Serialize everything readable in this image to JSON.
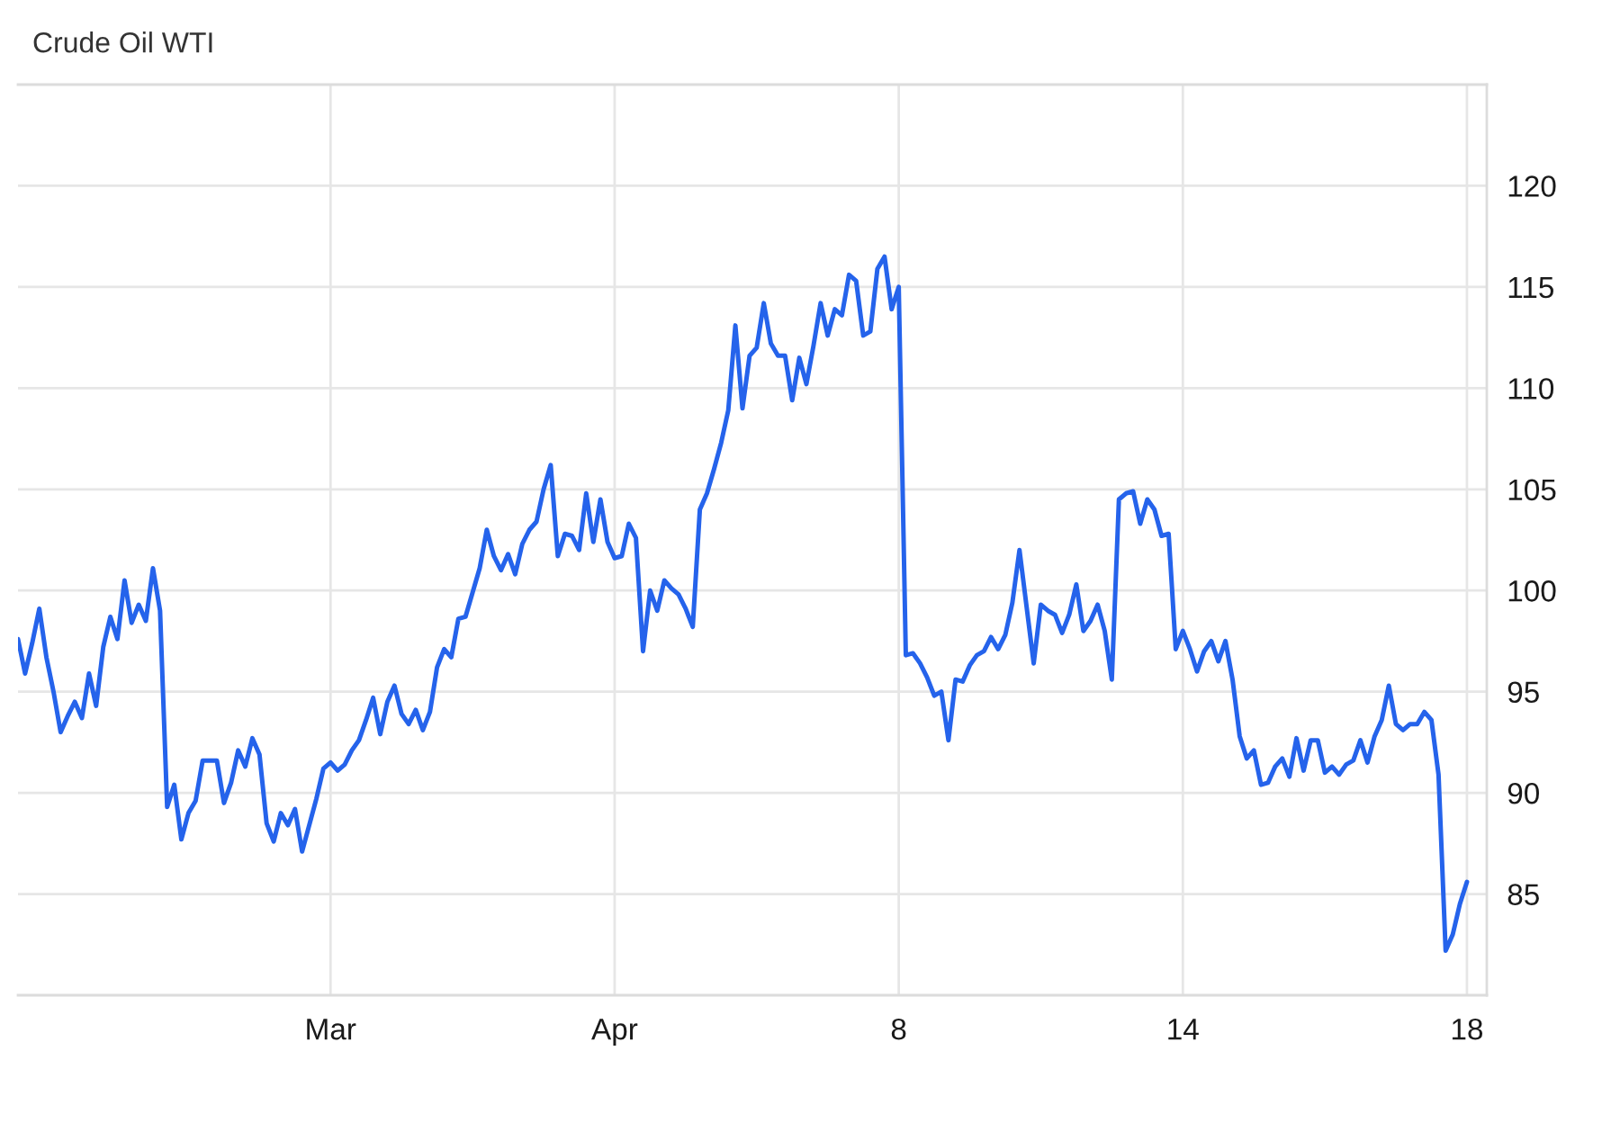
{
  "chart_data": {
    "type": "line",
    "title": "Crude Oil WTI",
    "categories": [
      null,
      null,
      null,
      null,
      null,
      null,
      null,
      null,
      null,
      null,
      null,
      null,
      null,
      null,
      null,
      null,
      null,
      null,
      null,
      null,
      null,
      null,
      null,
      null,
      null,
      null,
      null,
      null,
      null,
      null,
      null,
      null,
      null,
      null,
      null,
      null,
      null,
      null,
      null,
      null,
      null,
      null,
      null,
      null,
      "Mar",
      null,
      null,
      null,
      null,
      null,
      null,
      null,
      null,
      null,
      null,
      null,
      null,
      null,
      null,
      null,
      null,
      null,
      null,
      null,
      null,
      null,
      null,
      null,
      null,
      null,
      null,
      null,
      null,
      null,
      null,
      null,
      null,
      null,
      null,
      null,
      null,
      null,
      null,
      null,
      "Apr",
      null,
      null,
      null,
      null,
      null,
      null,
      null,
      null,
      null,
      null,
      null,
      null,
      null,
      null,
      null,
      null,
      null,
      null,
      null,
      null,
      null,
      null,
      null,
      null,
      null,
      null,
      null,
      null,
      null,
      null,
      null,
      null,
      null,
      null,
      null,
      null,
      null,
      null,
      null,
      "8",
      null,
      null,
      null,
      null,
      null,
      null,
      null,
      null,
      null,
      null,
      null,
      null,
      null,
      null,
      null,
      null,
      null,
      null,
      null,
      null,
      null,
      null,
      null,
      null,
      null,
      null,
      null,
      null,
      null,
      null,
      null,
      null,
      null,
      null,
      null,
      null,
      null,
      null,
      null,
      "14",
      null,
      null,
      null,
      null,
      null,
      null,
      null,
      null,
      null,
      null,
      null,
      null,
      null,
      null,
      null,
      null,
      null,
      null,
      null,
      null,
      null,
      null,
      null,
      null,
      null,
      null,
      null,
      null,
      null,
      null,
      null,
      null,
      null,
      null,
      null,
      null,
      null,
      null,
      null,
      "18"
    ],
    "series": [
      {
        "color": "#2563eb",
        "values": [
          97.6,
          95.9,
          97.4,
          99.1,
          96.7,
          95.0,
          93.0,
          93.8,
          94.5,
          93.7,
          95.9,
          94.3,
          97.2,
          98.7,
          97.6,
          100.5,
          98.4,
          99.3,
          98.5,
          101.1,
          99.0,
          89.3,
          90.4,
          87.7,
          89.0,
          89.6,
          91.6,
          91.6,
          91.6,
          89.5,
          90.5,
          92.1,
          91.3,
          92.7,
          91.9,
          88.5,
          87.6,
          89.0,
          88.4,
          89.2,
          87.1,
          88.4,
          89.7,
          91.2,
          91.5,
          91.1,
          91.4,
          92.1,
          92.6,
          93.6,
          94.7,
          92.9,
          94.5,
          95.3,
          93.9,
          93.4,
          94.1,
          93.1,
          94.0,
          96.2,
          97.1,
          96.7,
          98.6,
          98.7,
          99.9,
          101.1,
          103.0,
          101.7,
          101.0,
          101.8,
          100.8,
          102.3,
          103.0,
          103.4,
          105.0,
          106.2,
          101.7,
          102.8,
          102.7,
          102.0,
          104.8,
          102.4,
          104.5,
          102.4,
          101.6,
          101.7,
          103.3,
          102.6,
          97.0,
          100.0,
          99.0,
          100.5,
          100.1,
          99.8,
          99.1,
          98.2,
          104.0,
          104.8,
          106.0,
          107.3,
          108.9,
          113.1,
          109.0,
          111.6,
          112.0,
          114.2,
          112.2,
          111.6,
          111.6,
          109.4,
          111.5,
          110.2,
          112.1,
          114.2,
          112.6,
          113.9,
          113.6,
          115.6,
          115.3,
          112.6,
          112.8,
          115.9,
          116.5,
          113.9,
          115.0,
          96.8,
          96.9,
          96.4,
          95.7,
          94.8,
          95.0,
          92.6,
          95.6,
          95.5,
          96.3,
          96.8,
          97.0,
          97.7,
          97.1,
          97.8,
          99.4,
          102.0,
          99.2,
          96.4,
          99.3,
          99.0,
          98.8,
          97.9,
          98.8,
          100.3,
          98.0,
          98.5,
          99.3,
          98.0,
          95.6,
          104.5,
          104.8,
          104.9,
          103.3,
          104.5,
          104.0,
          102.7,
          102.8,
          97.1,
          98.0,
          97.1,
          96.0,
          97.0,
          97.5,
          96.5,
          97.5,
          95.6,
          92.8,
          91.7,
          92.1,
          90.4,
          90.5,
          91.3,
          91.7,
          90.8,
          92.7,
          91.1,
          92.6,
          92.6,
          91.0,
          91.3,
          90.9,
          91.4,
          91.6,
          92.6,
          91.5,
          92.8,
          93.6,
          95.3,
          93.4,
          93.1,
          93.4,
          93.4,
          94.0,
          93.6,
          90.9,
          82.2,
          83.0,
          84.5,
          85.6
        ]
      }
    ],
    "ylim": [
      80,
      125
    ],
    "yticks": [
      85,
      90,
      95,
      100,
      105,
      110,
      115,
      120
    ],
    "grid": true,
    "marker": "none",
    "line_style": "solid"
  }
}
